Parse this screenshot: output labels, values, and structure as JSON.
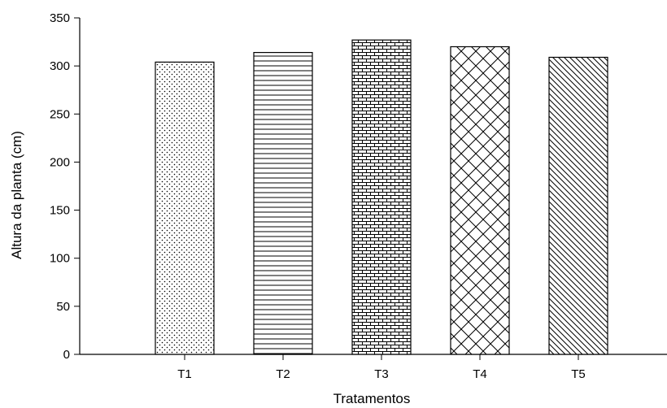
{
  "chart_data": {
    "type": "bar",
    "categories": [
      "T1",
      "T2",
      "T3",
      "T4",
      "T5"
    ],
    "values": [
      304,
      314,
      327,
      320,
      309
    ],
    "xlabel": "Tratamentos",
    "ylabel": "Altura da planta (cm)",
    "ylim": [
      0,
      350
    ],
    "yticks": [
      0,
      50,
      100,
      150,
      200,
      250,
      300,
      350
    ],
    "grid": false,
    "patterns": [
      "dots",
      "horizontal-lines",
      "bricks",
      "crosshatch",
      "diagonal-lines"
    ],
    "colors": {
      "bar_fill": "#ffffff",
      "stroke": "#000000"
    }
  }
}
